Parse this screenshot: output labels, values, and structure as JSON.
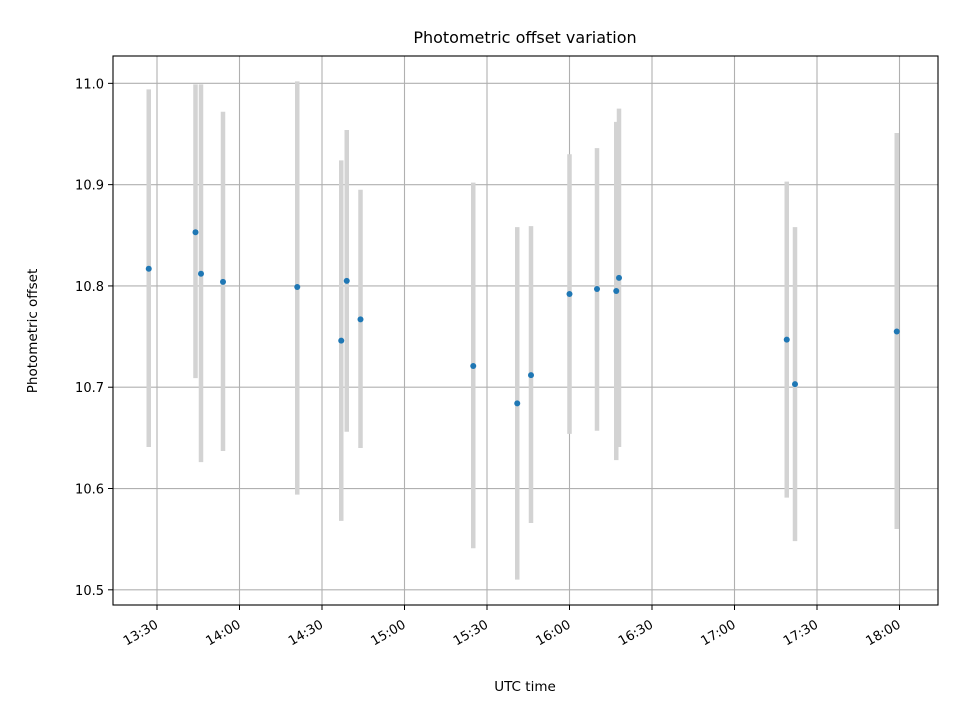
{
  "chart_data": {
    "type": "scatter",
    "title": "Photometric offset variation",
    "xlabel": "UTC time",
    "ylabel": "Photometric offset",
    "x_kind": "time",
    "xlim": [
      "13:14",
      "18:14"
    ],
    "ylim": [
      10.485,
      11.027
    ],
    "xticks": [
      "13:30",
      "14:00",
      "14:30",
      "15:00",
      "15:30",
      "16:00",
      "16:30",
      "17:00",
      "17:30",
      "18:00"
    ],
    "yticks": [
      10.5,
      10.6,
      10.7,
      10.8,
      10.9,
      11.0
    ],
    "ytick_labels": [
      "10.5",
      "10.6",
      "10.7",
      "10.8",
      "10.9",
      "11.0"
    ],
    "grid": true,
    "errorbar_color": "#d3d3d3",
    "marker_color": "#1f77b4",
    "points": [
      {
        "x": "13:27",
        "y": 10.817,
        "ylow": 10.641,
        "yhigh": 10.994
      },
      {
        "x": "13:44",
        "y": 10.853,
        "ylow": 10.709,
        "yhigh": 10.999
      },
      {
        "x": "13:46",
        "y": 10.812,
        "ylow": 10.626,
        "yhigh": 10.999
      },
      {
        "x": "13:54",
        "y": 10.804,
        "ylow": 10.637,
        "yhigh": 10.972
      },
      {
        "x": "14:21",
        "y": 10.799,
        "ylow": 10.594,
        "yhigh": 11.002
      },
      {
        "x": "14:37",
        "y": 10.746,
        "ylow": 10.568,
        "yhigh": 10.924
      },
      {
        "x": "14:39",
        "y": 10.805,
        "ylow": 10.656,
        "yhigh": 10.954
      },
      {
        "x": "14:44",
        "y": 10.767,
        "ylow": 10.64,
        "yhigh": 10.895
      },
      {
        "x": "15:25",
        "y": 10.721,
        "ylow": 10.541,
        "yhigh": 10.902
      },
      {
        "x": "15:41",
        "y": 10.684,
        "ylow": 10.51,
        "yhigh": 10.858
      },
      {
        "x": "15:46",
        "y": 10.712,
        "ylow": 10.566,
        "yhigh": 10.859
      },
      {
        "x": "16:00",
        "y": 10.792,
        "ylow": 10.654,
        "yhigh": 10.93
      },
      {
        "x": "16:10",
        "y": 10.797,
        "ylow": 10.657,
        "yhigh": 10.936
      },
      {
        "x": "16:17",
        "y": 10.795,
        "ylow": 10.628,
        "yhigh": 10.962
      },
      {
        "x": "16:18",
        "y": 10.808,
        "ylow": 10.641,
        "yhigh": 10.975
      },
      {
        "x": "17:19",
        "y": 10.747,
        "ylow": 10.591,
        "yhigh": 10.903
      },
      {
        "x": "17:22",
        "y": 10.703,
        "ylow": 10.548,
        "yhigh": 10.858
      },
      {
        "x": "17:59",
        "y": 10.755,
        "ylow": 10.56,
        "yhigh": 10.951
      }
    ]
  }
}
